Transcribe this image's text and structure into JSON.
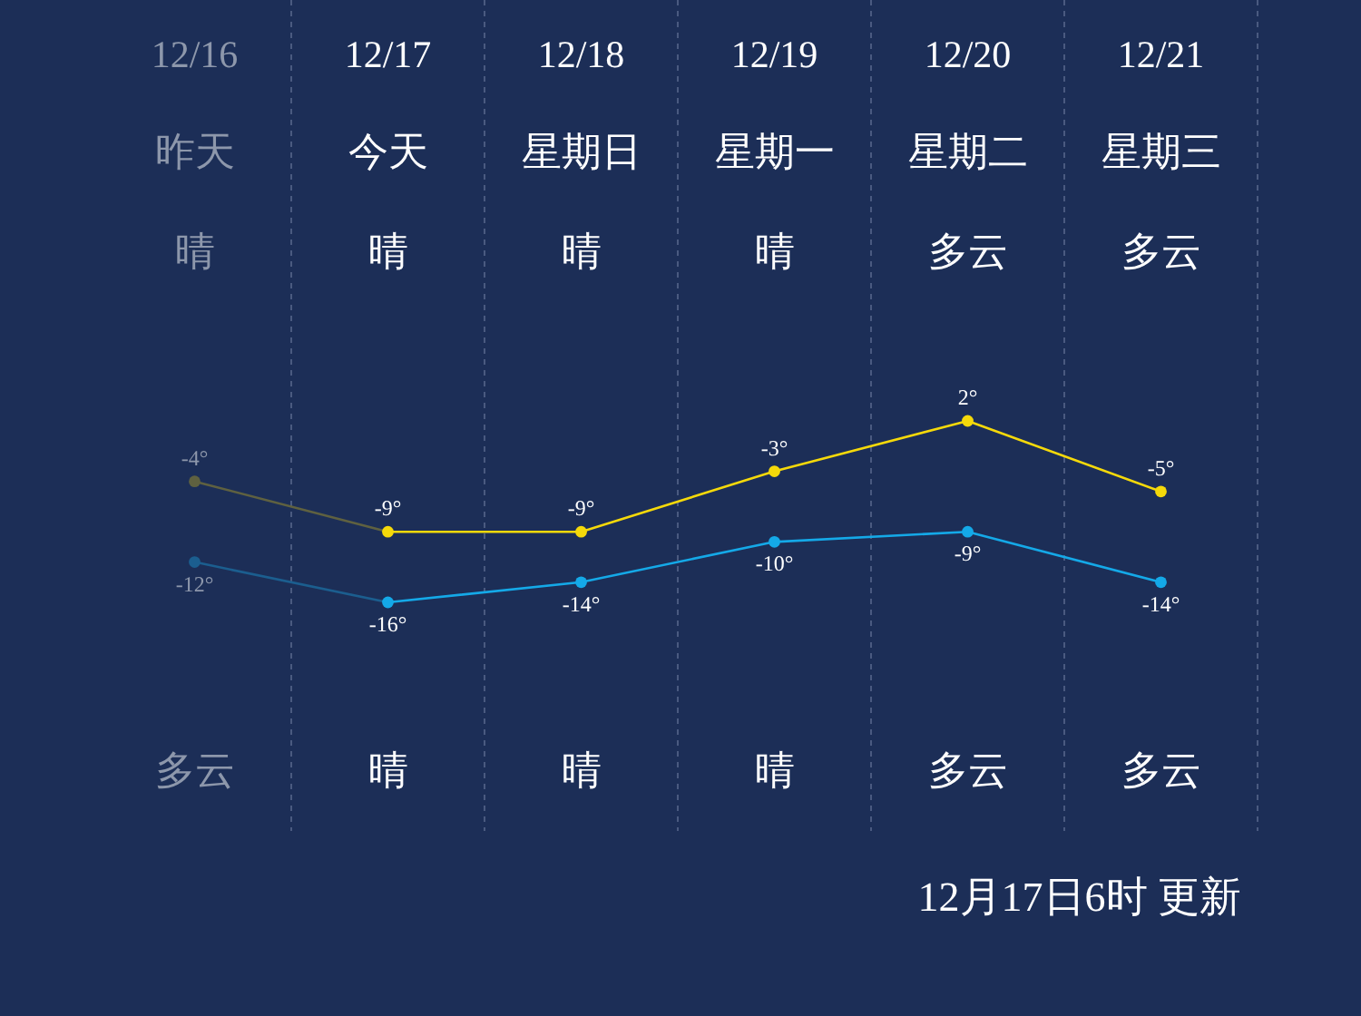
{
  "chart_data": {
    "type": "line",
    "categories": [
      "12/16",
      "12/17",
      "12/18",
      "12/19",
      "12/20",
      "12/21"
    ],
    "series": [
      {
        "color": "#f5d90a",
        "colors": [
          "#5f6140",
          null,
          null,
          null,
          null,
          null
        ],
        "values": [
          -4,
          -9,
          -9,
          -3,
          2,
          -5
        ],
        "value_labels": [
          "-4°",
          "-9°",
          "-9°",
          "-3°",
          "2°",
          "-5°"
        ]
      },
      {
        "color": "#14a9e8",
        "colors": [
          "#1b5e8f",
          null,
          null,
          null,
          null,
          null
        ],
        "values": [
          -12,
          -16,
          -14,
          -10,
          -9,
          -14
        ],
        "value_labels": [
          "-12°",
          "-16°",
          "-14°",
          "-10°",
          "-9°",
          "-14°"
        ]
      }
    ],
    "marker": "circle",
    "grid": "x",
    "annotations": [
      "昨天",
      "晴",
      "多云",
      "今天",
      "晴",
      "晴",
      "星期日",
      "晴",
      "晴",
      "星期一",
      "晴",
      "晴",
      "星期二",
      "多云",
      "多云",
      "星期三",
      "多云",
      "多云",
      "12月17日6时 更新"
    ]
  }
}
